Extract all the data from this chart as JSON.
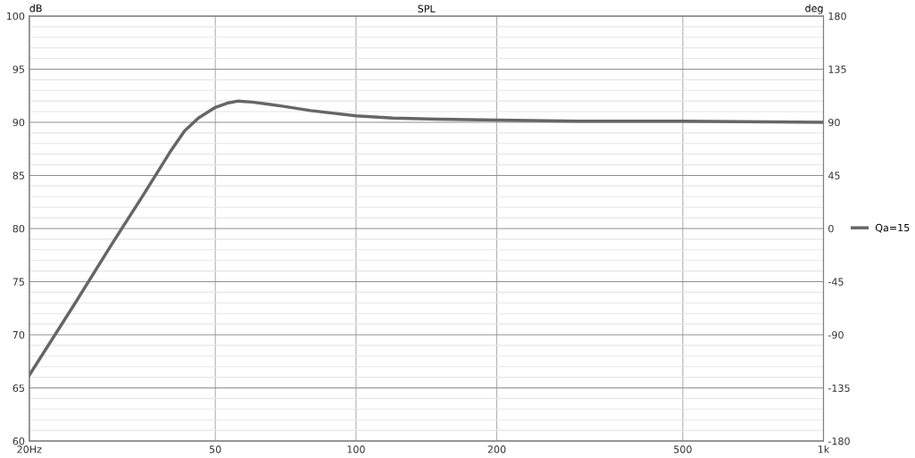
{
  "chart_data": {
    "type": "line",
    "title": "SPL",
    "ylabel": "dB",
    "y2label": "deg",
    "log": "x",
    "x": [
      20,
      25,
      30,
      35,
      40,
      43,
      46,
      50,
      53,
      56,
      60,
      65,
      70,
      80,
      100,
      120,
      150,
      200,
      300,
      500,
      1000
    ],
    "series": [
      {
        "name": "Qa=15",
        "color": "#666666",
        "values": [
          66.2,
          72.9,
          78.5,
          83.1,
          87.2,
          89.2,
          90.4,
          91.4,
          91.8,
          92.0,
          91.9,
          91.7,
          91.5,
          91.1,
          90.6,
          90.4,
          90.3,
          90.2,
          90.1,
          90.1,
          90.0
        ]
      }
    ],
    "xlim": [
      20,
      1000
    ],
    "xticks": [
      {
        "value": 20,
        "label": "20Hz"
      },
      50,
      100,
      200,
      500,
      {
        "value": 1000,
        "label": "1k"
      }
    ],
    "ylim": [
      60,
      100
    ],
    "yticks": [
      60,
      65,
      70,
      75,
      80,
      85,
      90,
      95,
      100
    ],
    "y2lim": [
      -180,
      180
    ],
    "y2ticks": [
      -180,
      -135,
      -90,
      -45,
      0,
      45,
      90,
      135,
      180
    ],
    "grid": true,
    "legend": "right",
    "marker": "none",
    "line_style": "solid"
  }
}
